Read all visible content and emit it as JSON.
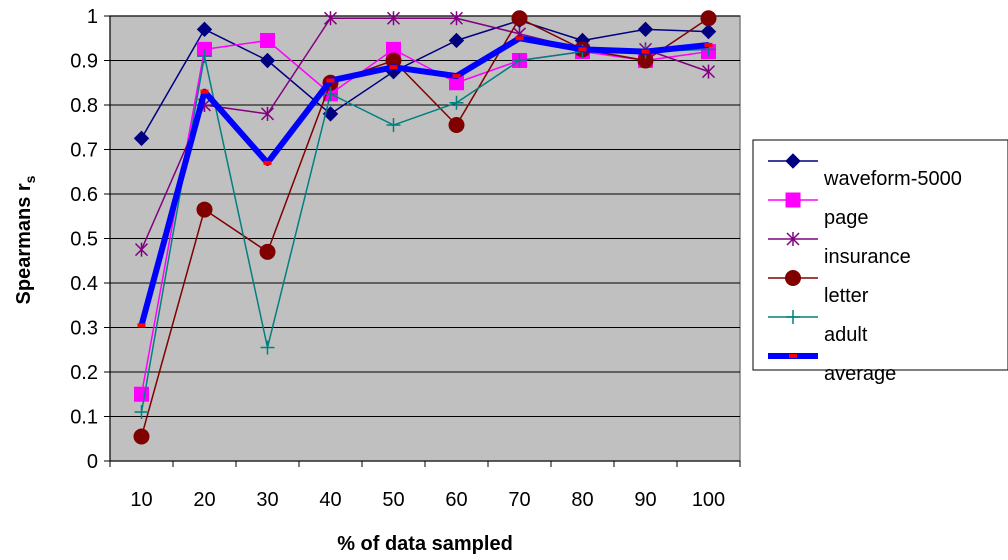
{
  "chart_data": {
    "type": "line",
    "title": "",
    "xlabel": "% of data sampled",
    "ylabel_main": "Spearmans r",
    "ylabel_sub": "s",
    "categories": [
      "10",
      "20",
      "30",
      "40",
      "50",
      "60",
      "70",
      "80",
      "90",
      "100"
    ],
    "ylim": [
      0,
      1
    ],
    "yticks": [
      "0",
      "0.1",
      "0.2",
      "0.3",
      "0.4",
      "0.5",
      "0.6",
      "0.7",
      "0.8",
      "0.9",
      "1"
    ],
    "grid": "horizontal",
    "plot_background": "#c0c0c0",
    "legend_position": "right",
    "series": [
      {
        "name": "waveform-5000",
        "color": "#000080",
        "marker": "diamond",
        "values": [
          0.725,
          0.97,
          0.9,
          0.78,
          0.875,
          0.945,
          0.99,
          0.945,
          0.97,
          0.965
        ]
      },
      {
        "name": "page",
        "color": "#ff00ff",
        "marker": "square",
        "values": [
          0.15,
          0.925,
          0.945,
          0.825,
          0.925,
          0.85,
          0.9,
          0.92,
          0.9,
          0.92
        ]
      },
      {
        "name": "insurance",
        "color": "#800080",
        "marker": "star",
        "values": [
          0.475,
          0.8,
          0.78,
          0.995,
          0.995,
          0.995,
          0.96,
          0.925,
          0.925,
          0.875
        ]
      },
      {
        "name": "letter",
        "color": "#800000",
        "marker": "circle",
        "values": [
          0.055,
          0.565,
          0.47,
          0.85,
          0.9,
          0.755,
          0.995,
          0.925,
          0.9,
          0.995
        ]
      },
      {
        "name": "adult",
        "color": "#008080",
        "marker": "plus",
        "values": [
          0.11,
          0.91,
          0.255,
          0.825,
          0.755,
          0.805,
          0.9,
          0.92,
          0.92,
          0.925
        ]
      },
      {
        "name": "average",
        "color": "#0000ff",
        "marker": "dash",
        "thick": true,
        "values": [
          0.305,
          0.83,
          0.67,
          0.855,
          0.885,
          0.865,
          0.95,
          0.925,
          0.92,
          0.935
        ]
      }
    ]
  }
}
